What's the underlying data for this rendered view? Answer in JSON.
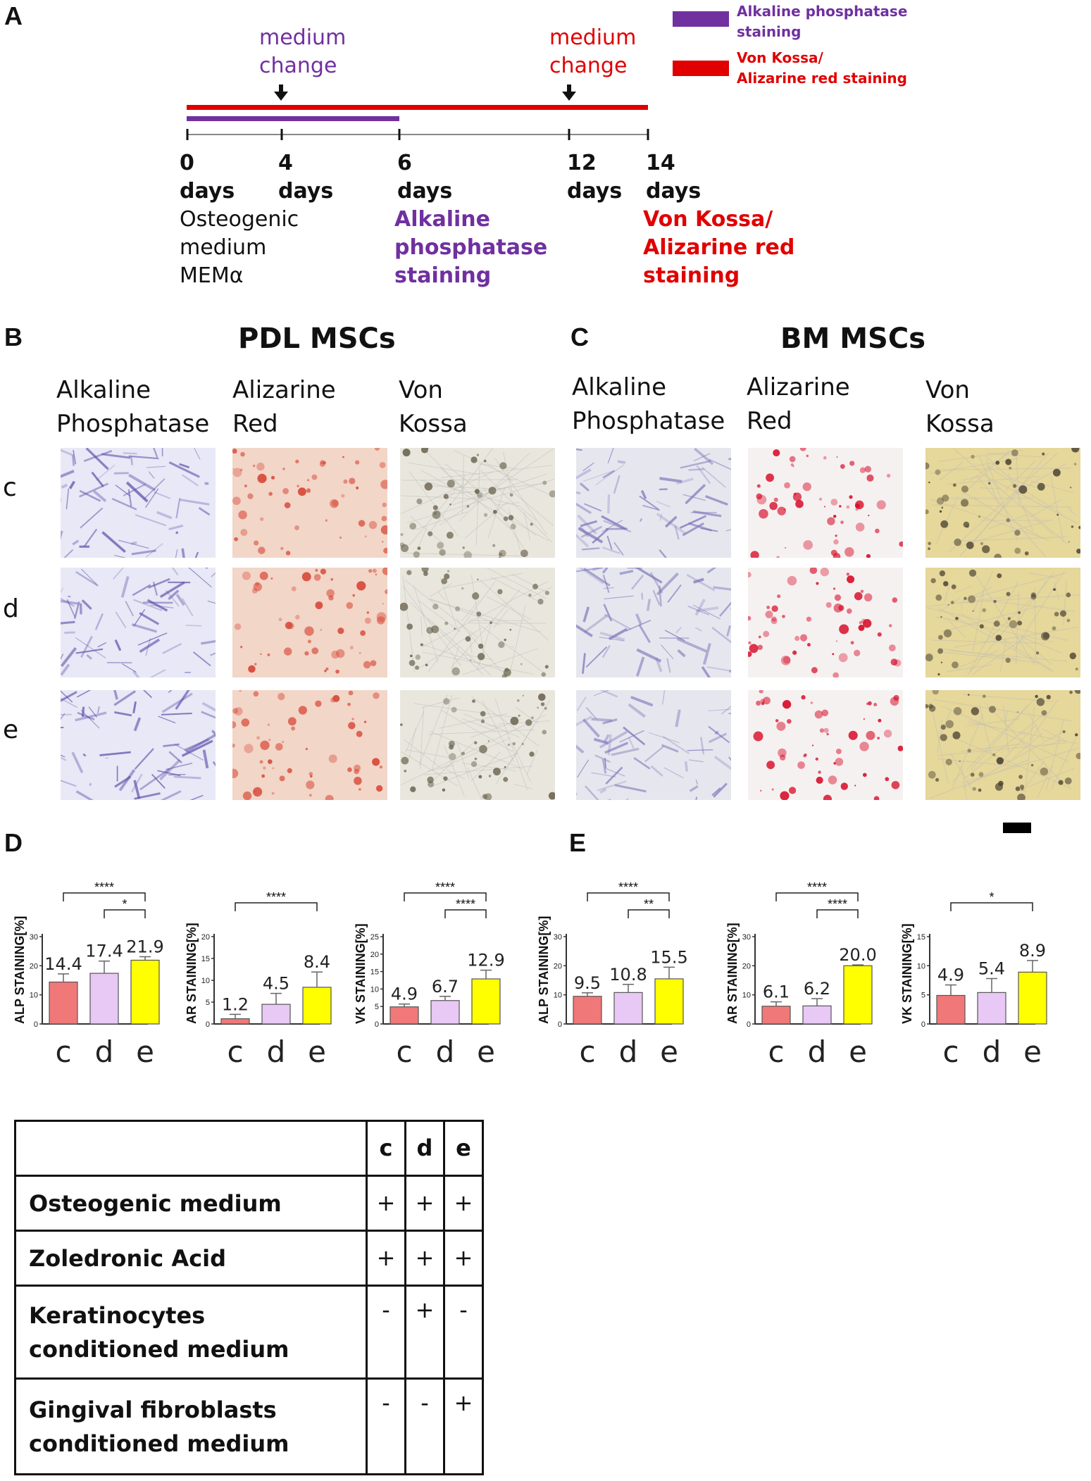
{
  "panels": {
    "A": "A",
    "B": "B",
    "C": "C",
    "D": "D",
    "E": "E"
  },
  "timeline": {
    "events": [
      {
        "label": "medium\nchange",
        "color": "#7030a0"
      },
      {
        "label": "medium\nchange",
        "color": "#e00000"
      }
    ],
    "ticks": [
      {
        "value": "0",
        "unit": "days"
      },
      {
        "value": "4",
        "unit": "days"
      },
      {
        "value": "6",
        "unit": "days"
      },
      {
        "value": "12",
        "unit": "days"
      },
      {
        "value": "14",
        "unit": "days"
      }
    ],
    "start_label": "Osteogenic\nmedium\nMEMα",
    "alp_label": "Alkaline\nphosphatase\nstaining",
    "vk_label": "Von Kossa/\nAlizarine red\nstaining",
    "legend": [
      {
        "label": "Alkaline phosphatase\nstaining",
        "color": "#7030a0"
      },
      {
        "label": "Von Kossa/\nAlizarine red staining",
        "color": "#e00000"
      }
    ],
    "alp_end_day": 6,
    "vk_end_day": 14
  },
  "pdl": {
    "title": "PDL MSCs",
    "columns": [
      "Alkaline\nPhosphatase",
      "Alizarine\nRed",
      "Von\nKossa"
    ]
  },
  "bm": {
    "title": "BM MSCs",
    "columns": [
      "Alkaline\nPhosphatase",
      "Alizarine\nRed",
      "Von\nKossa"
    ]
  },
  "rows": [
    "c",
    "d",
    "e"
  ],
  "colors": {
    "c": "#f07878",
    "d": "#e8c8f4",
    "e": "#ffff00",
    "alp_stain": "#5a4ea8",
    "ar_stain": "#d84a3a",
    "vk_stain": "#6b6350"
  },
  "chart_data": [
    {
      "type": "bar",
      "panel": "D",
      "ylabel": "ALP STAINING[%]",
      "categories": [
        "c",
        "d",
        "e"
      ],
      "values": [
        14.4,
        17.4,
        21.9
      ],
      "errors": [
        2.8,
        4.2,
        1.2
      ],
      "ylim": [
        0,
        30
      ],
      "yticks": [
        0,
        10,
        20,
        30
      ],
      "labels": [
        "14.4",
        "17.4",
        "21.9"
      ],
      "sig": [
        {
          "from": 0,
          "to": 2,
          "text": "****"
        },
        {
          "from": 1,
          "to": 2,
          "text": "*"
        }
      ]
    },
    {
      "type": "bar",
      "panel": "D",
      "ylabel": "AR STAINING[%]",
      "categories": [
        "c",
        "d",
        "e"
      ],
      "values": [
        1.2,
        4.5,
        8.4
      ],
      "errors": [
        1.0,
        2.5,
        3.5
      ],
      "ylim": [
        0,
        20
      ],
      "yticks": [
        0,
        5,
        10,
        15,
        20
      ],
      "labels": [
        "1.2",
        "4.5",
        "8.4"
      ],
      "sig": [
        {
          "from": 0,
          "to": 2,
          "text": "****"
        }
      ]
    },
    {
      "type": "bar",
      "panel": "D",
      "ylabel": "VK STAINING[%]",
      "categories": [
        "c",
        "d",
        "e"
      ],
      "values": [
        4.9,
        6.7,
        12.9
      ],
      "errors": [
        0.8,
        1.2,
        2.5
      ],
      "ylim": [
        0,
        25
      ],
      "yticks": [
        0,
        5,
        10,
        15,
        20,
        25
      ],
      "labels": [
        "4.9",
        "6.7",
        "12.9"
      ],
      "sig": [
        {
          "from": 0,
          "to": 2,
          "text": "****"
        },
        {
          "from": 1,
          "to": 2,
          "text": "****"
        }
      ]
    },
    {
      "type": "bar",
      "panel": "E",
      "ylabel": "ALP STAINING[%]",
      "categories": [
        "c",
        "d",
        "e"
      ],
      "values": [
        9.5,
        10.8,
        15.5
      ],
      "errors": [
        1.2,
        2.8,
        4.0
      ],
      "ylim": [
        0,
        30
      ],
      "yticks": [
        0,
        10,
        20,
        30
      ],
      "labels": [
        "9.5",
        "10.8",
        "15.5"
      ],
      "sig": [
        {
          "from": 0,
          "to": 2,
          "text": "****"
        },
        {
          "from": 1,
          "to": 2,
          "text": "**"
        }
      ]
    },
    {
      "type": "bar",
      "panel": "E",
      "ylabel": "AR STAINING[%]",
      "categories": [
        "c",
        "d",
        "e"
      ],
      "values": [
        6.1,
        6.2,
        20.0
      ],
      "errors": [
        1.5,
        2.5,
        0.3
      ],
      "ylim": [
        0,
        30
      ],
      "yticks": [
        0,
        10,
        20,
        30
      ],
      "labels": [
        "6.1",
        "6.2",
        "20.0"
      ],
      "sig": [
        {
          "from": 0,
          "to": 2,
          "text": "****"
        },
        {
          "from": 1,
          "to": 2,
          "text": "****"
        }
      ]
    },
    {
      "type": "bar",
      "panel": "E",
      "ylabel": "VK STAINING[%]",
      "categories": [
        "c",
        "d",
        "e"
      ],
      "values": [
        4.9,
        5.4,
        8.9
      ],
      "errors": [
        1.8,
        2.4,
        2.0
      ],
      "ylim": [
        0,
        15
      ],
      "yticks": [
        0,
        5,
        10,
        15
      ],
      "labels": [
        "4.9",
        "5.4",
        "8.9"
      ],
      "sig": [
        {
          "from": 0,
          "to": 2,
          "text": "*"
        }
      ]
    }
  ],
  "table": {
    "header": [
      "",
      "c",
      "d",
      "e"
    ],
    "rows": [
      {
        "label": "Osteogenic medium",
        "c": "+",
        "d": "+",
        "e": "+"
      },
      {
        "label": "Zoledronic Acid",
        "c": "+",
        "d": "+",
        "e": "+"
      },
      {
        "label": "Keratinocytes\nconditioned medium",
        "c": "-",
        "d": "+",
        "e": "-"
      },
      {
        "label": "Gingival fibroblasts\nconditioned medium",
        "c": "-",
        "d": "-",
        "e": "+"
      }
    ]
  }
}
